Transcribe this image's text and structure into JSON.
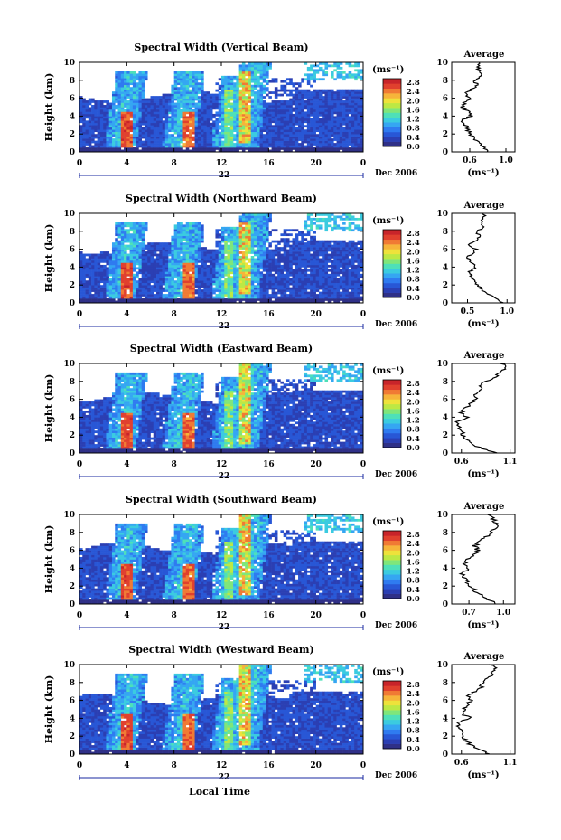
{
  "figure": {
    "xlabel": "Local Time",
    "date_label": "Dec 2006",
    "day_label": "22",
    "ylabel": "Height (km)",
    "unit_label": "(ms⁻¹)",
    "avg_title": "Average",
    "avg_xlabel": "(ms⁻¹)"
  },
  "colorbar": {
    "ticks": [
      "2.8",
      "2.4",
      "2.0",
      "1.6",
      "1.2",
      "0.8",
      "0.4",
      "0.0"
    ],
    "colors": [
      "#2f3087",
      "#2b3fb3",
      "#2857d6",
      "#2f7bf0",
      "#35a6f2",
      "#3bcbe0",
      "#4ee0b8",
      "#7fe67a",
      "#bde844",
      "#eee23b",
      "#f6b43a",
      "#f07a34",
      "#e0402e",
      "#c8242a"
    ]
  },
  "chart_data": [
    {
      "type": "heatmap",
      "title": "Spectral Width (Vertical Beam)",
      "xlim": [
        0,
        24
      ],
      "ylim": [
        0,
        10
      ],
      "xticks": [
        "0",
        "4",
        "8",
        "12",
        "16",
        "20",
        "0"
      ],
      "yticks": [
        "0",
        "2",
        "4",
        "6",
        "8",
        "10"
      ],
      "avg_profile": {
        "xticks": [
          "0.6",
          "1.0"
        ],
        "xlim": [
          0.4,
          1.1
        ],
        "height": [
          0,
          0.5,
          1,
          1.5,
          2,
          2.5,
          3,
          3.5,
          4,
          4.5,
          5,
          5.5,
          6,
          6.5,
          7,
          7.5,
          8,
          8.5,
          9,
          9.5,
          10
        ],
        "value": [
          0.8,
          0.75,
          0.7,
          0.65,
          0.6,
          0.58,
          0.55,
          0.5,
          0.62,
          0.58,
          0.52,
          0.55,
          0.6,
          0.55,
          0.62,
          0.68,
          0.65,
          0.72,
          0.7,
          0.7,
          0.7
        ]
      }
    },
    {
      "type": "heatmap",
      "title": "Spectral Width (Northward Beam)",
      "xlim": [
        0,
        24
      ],
      "ylim": [
        0,
        10
      ],
      "xticks": [
        "0",
        "4",
        "8",
        "12",
        "16",
        "20",
        "0"
      ],
      "yticks": [
        "0",
        "2",
        "4",
        "6",
        "8",
        "10"
      ],
      "avg_profile": {
        "xticks": [
          "0.5",
          "1.0"
        ],
        "xlim": [
          0.3,
          1.1
        ],
        "height": [
          0,
          0.5,
          1,
          1.5,
          2,
          2.5,
          3,
          3.5,
          4,
          4.5,
          5,
          5.5,
          6,
          6.5,
          7,
          7.5,
          8,
          8.5,
          9,
          9.5,
          10
        ],
        "value": [
          0.95,
          0.85,
          0.75,
          0.68,
          0.62,
          0.58,
          0.55,
          0.52,
          0.6,
          0.55,
          0.5,
          0.55,
          0.6,
          0.52,
          0.6,
          0.65,
          0.62,
          0.7,
          0.68,
          0.7,
          0.72
        ]
      }
    },
    {
      "type": "heatmap",
      "title": "Spectral Width (Eastward Beam)",
      "xlim": [
        0,
        24
      ],
      "ylim": [
        0,
        10
      ],
      "xticks": [
        "0",
        "4",
        "8",
        "12",
        "16",
        "20",
        "0"
      ],
      "yticks": [
        "0",
        "2",
        "4",
        "6",
        "8",
        "10"
      ],
      "avg_profile": {
        "xticks": [
          "0.6",
          "1.1"
        ],
        "xlim": [
          0.5,
          1.15
        ],
        "height": [
          0,
          0.5,
          1,
          1.5,
          2,
          2.5,
          3,
          3.5,
          4,
          4.5,
          5,
          5.5,
          6,
          6.5,
          7,
          7.5,
          8,
          8.5,
          9,
          9.5,
          10
        ],
        "value": [
          0.95,
          0.8,
          0.7,
          0.66,
          0.62,
          0.6,
          0.58,
          0.56,
          0.66,
          0.6,
          0.64,
          0.7,
          0.75,
          0.72,
          0.78,
          0.8,
          0.85,
          0.95,
          1.0,
          1.05,
          1.02
        ]
      }
    },
    {
      "type": "heatmap",
      "title": "Spectral Width (Southward Beam)",
      "xlim": [
        0,
        24
      ],
      "ylim": [
        0,
        10
      ],
      "xticks": [
        "0",
        "4",
        "8",
        "12",
        "16",
        "20",
        "0"
      ],
      "yticks": [
        "0",
        "2",
        "4",
        "6",
        "8",
        "10"
      ],
      "avg_profile": {
        "xticks": [
          "0.7",
          "1.0"
        ],
        "xlim": [
          0.55,
          1.1
        ],
        "height": [
          0,
          0.5,
          1,
          1.5,
          2,
          2.5,
          3,
          3.5,
          4,
          4.5,
          5,
          5.5,
          6,
          6.5,
          7,
          7.5,
          8,
          8.5,
          9,
          9.5,
          10
        ],
        "value": [
          0.95,
          0.85,
          0.8,
          0.75,
          0.7,
          0.68,
          0.66,
          0.64,
          0.7,
          0.66,
          0.7,
          0.74,
          0.78,
          0.75,
          0.8,
          0.85,
          0.88,
          0.92,
          0.95,
          0.9,
          0.88
        ]
      }
    },
    {
      "type": "heatmap",
      "title": "Spectral Width (Westward Beam)",
      "xlim": [
        0,
        24
      ],
      "ylim": [
        0,
        10
      ],
      "xticks": [
        "0",
        "4",
        "8",
        "12",
        "16",
        "20",
        "0"
      ],
      "yticks": [
        "0",
        "2",
        "4",
        "6",
        "8",
        "10"
      ],
      "avg_profile": {
        "xticks": [
          "0.6",
          "1.1"
        ],
        "xlim": [
          0.5,
          1.15
        ],
        "height": [
          0,
          0.5,
          1,
          1.5,
          2,
          2.5,
          3,
          3.5,
          4,
          4.5,
          5,
          5.5,
          6,
          6.5,
          7,
          7.5,
          8,
          8.5,
          9,
          9.5,
          10
        ],
        "value": [
          0.9,
          0.78,
          0.7,
          0.65,
          0.62,
          0.6,
          0.58,
          0.55,
          0.7,
          0.6,
          0.62,
          0.66,
          0.7,
          0.68,
          0.74,
          0.8,
          0.82,
          0.88,
          0.92,
          0.95,
          0.9
        ]
      }
    }
  ]
}
